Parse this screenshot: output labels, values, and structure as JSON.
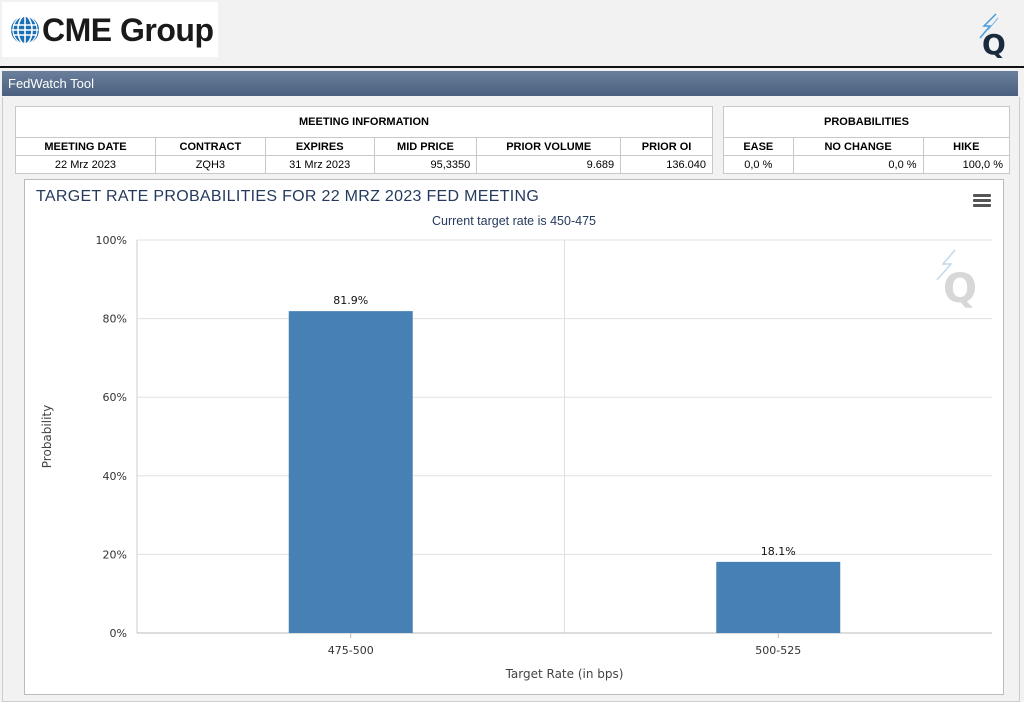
{
  "header": {
    "logo_text": "CME Group",
    "brand_icon": "q-icon"
  },
  "title_bar": {
    "title": "FedWatch Tool"
  },
  "meeting_info": {
    "title": "MEETING INFORMATION",
    "columns": [
      "MEETING DATE",
      "CONTRACT",
      "EXPIRES",
      "MID PRICE",
      "PRIOR VOLUME",
      "PRIOR OI"
    ],
    "row": [
      "22 Mrz 2023",
      "ZQH3",
      "31 Mrz 2023",
      "95,3350",
      "9.689",
      "136.040"
    ]
  },
  "probabilities": {
    "title": "PROBABILITIES",
    "columns": [
      "EASE",
      "NO CHANGE",
      "HIKE"
    ],
    "row": [
      "0,0 %",
      "0,0 %",
      "100,0 %"
    ]
  },
  "chart_data": {
    "type": "bar",
    "title": "TARGET RATE PROBABILITIES FOR 22 MRZ 2023 FED MEETING",
    "subtitle": "Current target rate is 450-475",
    "xlabel": "Target Rate (in bps)",
    "ylabel": "Probability",
    "categories": [
      "475-500",
      "500-525"
    ],
    "values": [
      81.9,
      18.1
    ],
    "data_labels": [
      "81.9%",
      "18.1%"
    ],
    "y_ticks": [
      "0%",
      "20%",
      "40%",
      "60%",
      "80%",
      "100%"
    ],
    "ylim": [
      0,
      100
    ],
    "grid": true,
    "bar_color": "#4680b4"
  }
}
